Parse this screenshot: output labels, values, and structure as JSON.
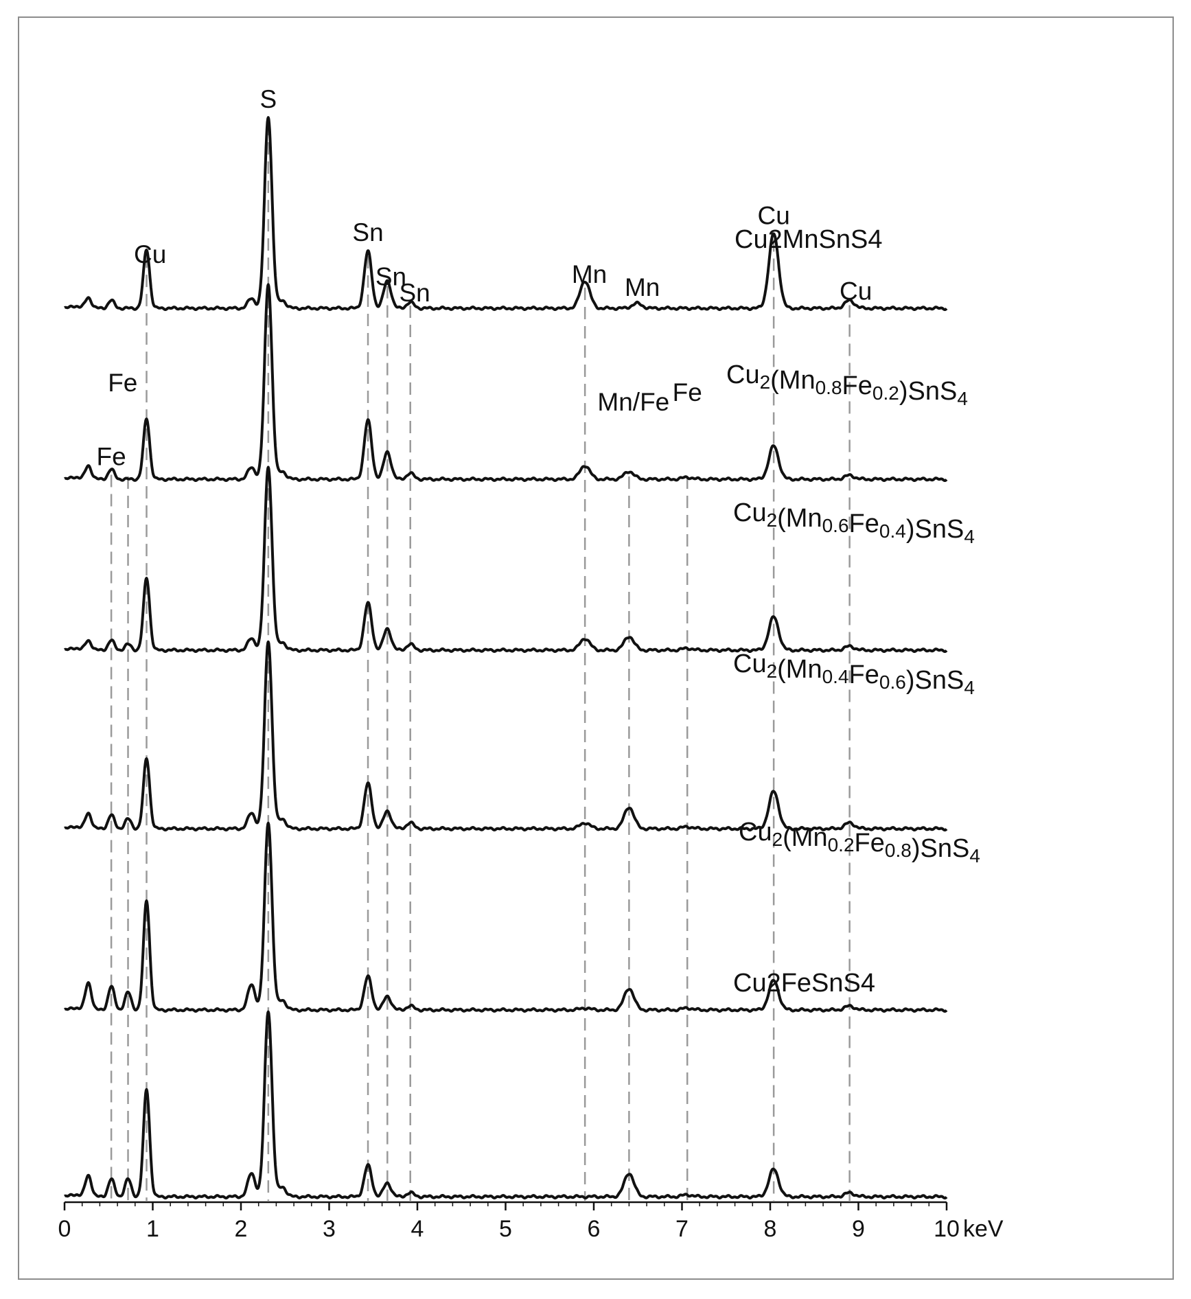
{
  "chart_data": {
    "type": "line",
    "title": "",
    "xlabel": "keV",
    "ylabel": "",
    "xlim": [
      0,
      10
    ],
    "grid": false,
    "legend": "none",
    "x_ticks": [
      "0",
      "1",
      "2",
      "3",
      "4",
      "5",
      "6",
      "7",
      "8",
      "9",
      "10"
    ],
    "y_unit_note": "relative intensity, 0-1 scale per stacked spectrum (S peak = 1)",
    "line_color": "#111111",
    "reference_line_color": "#9a9a9a",
    "series": [
      {
        "name": "Cu2MnSnS4",
        "label_segments": [
          {
            "text": "Cu2MnSnS4",
            "sub": false
          }
        ],
        "peaks": [
          {
            "x": 0.27,
            "h": 0.055
          },
          {
            "x": 0.53,
            "h": 0.04
          },
          {
            "x": 0.93,
            "h": 0.3
          },
          {
            "x": 2.12,
            "h": 0.05
          },
          {
            "x": 2.31,
            "h": 0.98
          },
          {
            "x": 2.47,
            "h": 0.04
          },
          {
            "x": 3.44,
            "h": 0.29
          },
          {
            "x": 3.66,
            "h": 0.14
          },
          {
            "x": 3.92,
            "h": 0.03
          },
          {
            "x": 5.9,
            "h": 0.14
          },
          {
            "x": 6.49,
            "h": 0.025
          },
          {
            "x": 8.04,
            "h": 0.38
          },
          {
            "x": 8.9,
            "h": 0.04
          }
        ]
      },
      {
        "name": "Cu2(Mn0.8Fe0.2)SnS4",
        "label_segments": [
          {
            "text": "Cu",
            "sub": false
          },
          {
            "text": "2",
            "sub": true
          },
          {
            "text": "(Mn",
            "sub": false
          },
          {
            "text": "0.8",
            "sub": true
          },
          {
            "text": "Fe",
            "sub": false
          },
          {
            "text": "0.2",
            "sub": true
          },
          {
            "text": ")SnS",
            "sub": false
          },
          {
            "text": "4",
            "sub": true
          }
        ],
        "peaks": [
          {
            "x": 0.27,
            "h": 0.07
          },
          {
            "x": 0.53,
            "h": 0.05
          },
          {
            "x": 0.93,
            "h": 0.31
          },
          {
            "x": 2.12,
            "h": 0.06
          },
          {
            "x": 2.31,
            "h": 1.0
          },
          {
            "x": 2.47,
            "h": 0.04
          },
          {
            "x": 3.44,
            "h": 0.3
          },
          {
            "x": 3.66,
            "h": 0.14
          },
          {
            "x": 3.92,
            "h": 0.03
          },
          {
            "x": 5.9,
            "h": 0.07
          },
          {
            "x": 6.4,
            "h": 0.04
          },
          {
            "x": 7.06,
            "h": 0.01
          },
          {
            "x": 8.04,
            "h": 0.17
          },
          {
            "x": 8.9,
            "h": 0.02
          }
        ]
      },
      {
        "name": "Cu2(Mn0.6Fe0.4)SnS4",
        "label_segments": [
          {
            "text": "Cu",
            "sub": false
          },
          {
            "text": "2",
            "sub": true
          },
          {
            "text": "(Mn",
            "sub": false
          },
          {
            "text": "0.6",
            "sub": true
          },
          {
            "text": "Fe",
            "sub": false
          },
          {
            "text": "0.4",
            "sub": true
          },
          {
            "text": ")SnS",
            "sub": false
          },
          {
            "text": "4",
            "sub": true
          }
        ],
        "peaks": [
          {
            "x": 0.27,
            "h": 0.05
          },
          {
            "x": 0.53,
            "h": 0.05
          },
          {
            "x": 0.72,
            "h": 0.03
          },
          {
            "x": 0.93,
            "h": 0.37
          },
          {
            "x": 2.12,
            "h": 0.06
          },
          {
            "x": 2.31,
            "h": 0.94
          },
          {
            "x": 2.47,
            "h": 0.04
          },
          {
            "x": 3.44,
            "h": 0.24
          },
          {
            "x": 3.66,
            "h": 0.11
          },
          {
            "x": 3.92,
            "h": 0.03
          },
          {
            "x": 5.9,
            "h": 0.06
          },
          {
            "x": 6.4,
            "h": 0.07
          },
          {
            "x": 7.06,
            "h": 0.01
          },
          {
            "x": 8.04,
            "h": 0.17
          },
          {
            "x": 8.9,
            "h": 0.02
          }
        ]
      },
      {
        "name": "Cu2(Mn0.4Fe0.6)SnS4",
        "label_segments": [
          {
            "text": "Cu",
            "sub": false
          },
          {
            "text": "2",
            "sub": true
          },
          {
            "text": "(Mn",
            "sub": false
          },
          {
            "text": "0.4",
            "sub": true
          },
          {
            "text": "Fe",
            "sub": false
          },
          {
            "text": "0.6",
            "sub": true
          },
          {
            "text": ")SnS",
            "sub": false
          },
          {
            "text": "4",
            "sub": true
          }
        ],
        "peaks": [
          {
            "x": 0.27,
            "h": 0.08
          },
          {
            "x": 0.53,
            "h": 0.07
          },
          {
            "x": 0.72,
            "h": 0.05
          },
          {
            "x": 0.93,
            "h": 0.36
          },
          {
            "x": 2.12,
            "h": 0.08
          },
          {
            "x": 2.31,
            "h": 0.96
          },
          {
            "x": 2.47,
            "h": 0.05
          },
          {
            "x": 3.44,
            "h": 0.23
          },
          {
            "x": 3.66,
            "h": 0.09
          },
          {
            "x": 3.92,
            "h": 0.03
          },
          {
            "x": 5.9,
            "h": 0.03
          },
          {
            "x": 6.4,
            "h": 0.11
          },
          {
            "x": 7.06,
            "h": 0.01
          },
          {
            "x": 8.04,
            "h": 0.19
          },
          {
            "x": 8.9,
            "h": 0.03
          }
        ]
      },
      {
        "name": "Cu2(Mn0.2Fe0.8)SnS4",
        "label_segments": [
          {
            "text": "Cu",
            "sub": false
          },
          {
            "text": "2",
            "sub": true
          },
          {
            "text": "(Mn",
            "sub": false
          },
          {
            "text": "0.2",
            "sub": true
          },
          {
            "text": "Fe",
            "sub": false
          },
          {
            "text": "0.8",
            "sub": true
          },
          {
            "text": ")SnS",
            "sub": false
          },
          {
            "text": "4",
            "sub": true
          }
        ],
        "peaks": [
          {
            "x": 0.27,
            "h": 0.14
          },
          {
            "x": 0.53,
            "h": 0.12
          },
          {
            "x": 0.72,
            "h": 0.09
          },
          {
            "x": 0.93,
            "h": 0.56
          },
          {
            "x": 2.12,
            "h": 0.13
          },
          {
            "x": 2.31,
            "h": 0.96
          },
          {
            "x": 2.47,
            "h": 0.05
          },
          {
            "x": 3.44,
            "h": 0.17
          },
          {
            "x": 3.66,
            "h": 0.07
          },
          {
            "x": 3.92,
            "h": 0.02
          },
          {
            "x": 5.9,
            "h": 0.01
          },
          {
            "x": 6.4,
            "h": 0.11
          },
          {
            "x": 7.06,
            "h": 0.01
          },
          {
            "x": 8.04,
            "h": 0.15
          },
          {
            "x": 8.9,
            "h": 0.02
          }
        ]
      },
      {
        "name": "Cu2FeSnS4",
        "label_segments": [
          {
            "text": "Cu2FeSnS4",
            "sub": false
          }
        ],
        "peaks": [
          {
            "x": 0.27,
            "h": 0.11
          },
          {
            "x": 0.53,
            "h": 0.09
          },
          {
            "x": 0.72,
            "h": 0.09
          },
          {
            "x": 0.93,
            "h": 0.55
          },
          {
            "x": 2.12,
            "h": 0.12
          },
          {
            "x": 2.31,
            "h": 0.95
          },
          {
            "x": 2.47,
            "h": 0.05
          },
          {
            "x": 3.44,
            "h": 0.16
          },
          {
            "x": 3.66,
            "h": 0.07
          },
          {
            "x": 3.92,
            "h": 0.02
          },
          {
            "x": 6.4,
            "h": 0.12
          },
          {
            "x": 7.06,
            "h": 0.01
          },
          {
            "x": 8.04,
            "h": 0.14
          },
          {
            "x": 8.9,
            "h": 0.02
          }
        ]
      }
    ],
    "reference_lines": [
      {
        "x": 0.53,
        "from_series": 1
      },
      {
        "x": 0.72,
        "from_series": 1
      },
      {
        "x": 0.93,
        "from_series": 0
      },
      {
        "x": 2.31,
        "from_series": 0
      },
      {
        "x": 3.44,
        "from_series": 0
      },
      {
        "x": 3.66,
        "from_series": 0
      },
      {
        "x": 3.92,
        "from_series": 0
      },
      {
        "x": 5.9,
        "from_series": 0
      },
      {
        "x": 6.4,
        "from_series": 1
      },
      {
        "x": 7.06,
        "from_series": 1
      },
      {
        "x": 8.04,
        "from_series": 0
      },
      {
        "x": 8.9,
        "from_series": 0
      }
    ],
    "annotations": [
      {
        "text": "S",
        "x": 2.31,
        "series": 0
      },
      {
        "text": "Cu",
        "x": 0.97,
        "series": 0
      },
      {
        "text": "Sn",
        "x": 3.44,
        "series": 0
      },
      {
        "text": "Sn",
        "x": 3.7,
        "series": 0
      },
      {
        "text": "Sn",
        "x": 3.97,
        "series": 0
      },
      {
        "text": "Mn",
        "x": 5.95,
        "series": 0
      },
      {
        "text": "Mn",
        "x": 6.55,
        "series": 0
      },
      {
        "text": "Cu",
        "x": 8.04,
        "series": 0
      },
      {
        "text": "Cu",
        "x": 8.97,
        "series": 0
      },
      {
        "text": "Fe",
        "x": 0.66,
        "series": 1
      },
      {
        "text": "Fe",
        "x": 0.53,
        "series": 1
      },
      {
        "text": "Mn/Fe",
        "x": 6.45,
        "series": 1
      },
      {
        "text": "Fe",
        "x": 7.06,
        "series": 1
      }
    ]
  }
}
